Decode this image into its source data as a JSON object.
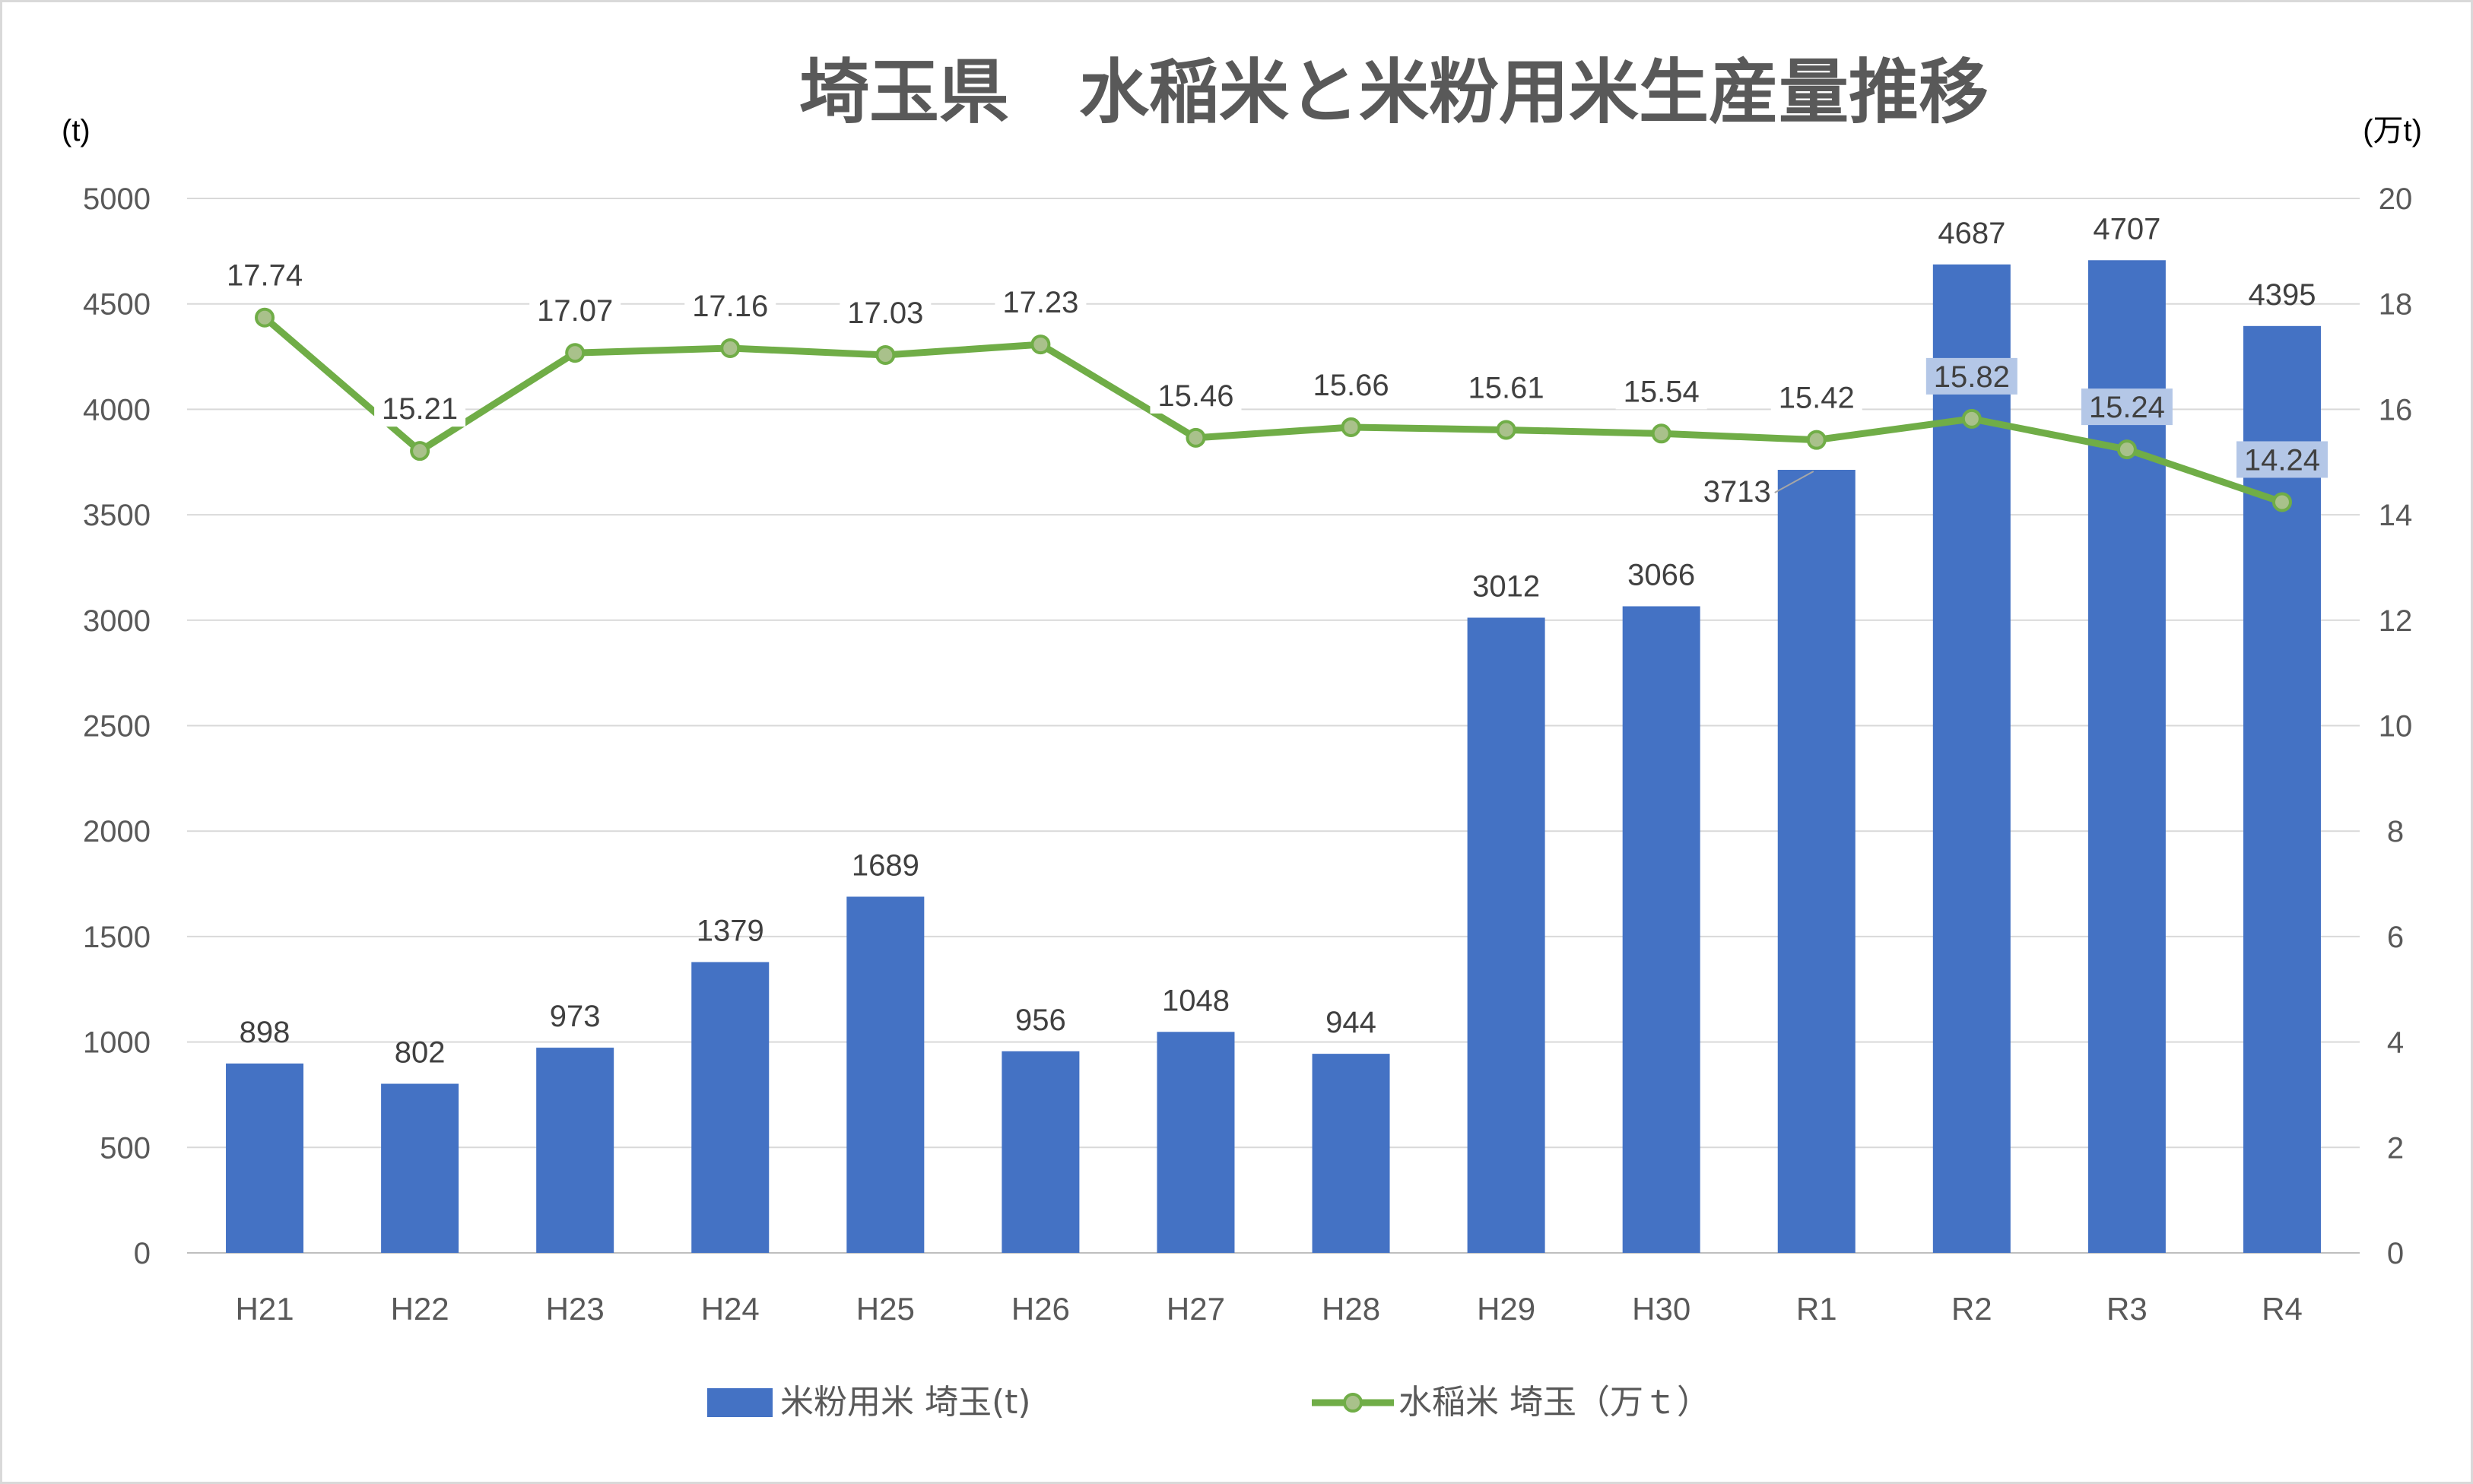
{
  "chart_data": {
    "type": "bar",
    "title": "埼玉県　水稲米と米粉用米生産量推移",
    "left_unit": "(t)",
    "right_unit": "(万t)",
    "categories": [
      "H21",
      "H22",
      "H23",
      "H24",
      "H25",
      "H26",
      "H27",
      "H28",
      "H29",
      "H30",
      "R1",
      "R2",
      "R3",
      "R4"
    ],
    "series": [
      {
        "name": "米粉用米 埼玉(t)",
        "type": "bar",
        "axis": "left",
        "color": "#4472C4",
        "values": [
          898,
          802,
          973,
          1379,
          1689,
          956,
          1048,
          944,
          3012,
          3066,
          3713,
          4687,
          4707,
          4395
        ],
        "labels": [
          "898",
          "802",
          "973",
          "1379",
          "1689",
          "956",
          "1048",
          "944",
          "3012",
          "3066",
          "3713",
          "4687",
          "4707",
          "4395"
        ]
      },
      {
        "name": "水稲米 埼玉（万ｔ）",
        "type": "line",
        "axis": "right",
        "color": "#70AD47",
        "marker_color": "#A9C18B",
        "values": [
          17.74,
          15.21,
          17.07,
          17.16,
          17.03,
          17.23,
          15.46,
          15.66,
          15.61,
          15.54,
          15.42,
          15.82,
          15.24,
          14.24
        ],
        "labels": [
          "17.74",
          "15.21",
          "17.07",
          "17.16",
          "17.03",
          "17.23",
          "15.46",
          "15.66",
          "15.61",
          "15.54",
          "15.42",
          "15.82",
          "15.24",
          "14.24"
        ]
      }
    ],
    "y_left": {
      "min": 0,
      "max": 5000,
      "step": 500,
      "ticks": [
        "0",
        "500",
        "1000",
        "1500",
        "2000",
        "2500",
        "3000",
        "3500",
        "4000",
        "4500",
        "5000"
      ]
    },
    "y_right": {
      "min": 0,
      "max": 20,
      "step": 2,
      "ticks": [
        "0",
        "2",
        "4",
        "6",
        "8",
        "10",
        "12",
        "14",
        "16",
        "18",
        "20"
      ]
    },
    "grid": true,
    "legend_position": "bottom"
  }
}
